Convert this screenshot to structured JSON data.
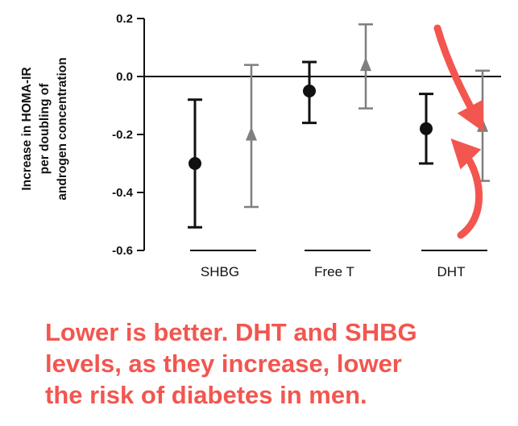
{
  "chart_data": {
    "type": "scatter",
    "subtype": "point-estimate-with-error-bars",
    "ylabel_lines": [
      "Increase in HOMA-IR",
      "per doubling of",
      "androgen concentration"
    ],
    "ylim": [
      -0.6,
      0.2
    ],
    "yticks": [
      "0.2",
      "0.0",
      "-0.2",
      "-0.4",
      "-0.6"
    ],
    "ytick_values": [
      0.2,
      0.0,
      -0.2,
      -0.4,
      -0.6
    ],
    "reference_line": 0.0,
    "categories": [
      "SHBG",
      "Free T",
      "DHT"
    ],
    "series": [
      {
        "marker": "circle",
        "color": "#111111",
        "points": [
          {
            "category": "SHBG",
            "y": -0.3,
            "lower": -0.52,
            "upper": -0.08
          },
          {
            "category": "Free T",
            "y": -0.05,
            "lower": -0.16,
            "upper": 0.05
          },
          {
            "category": "DHT",
            "y": -0.18,
            "lower": -0.3,
            "upper": -0.06
          }
        ]
      },
      {
        "marker": "triangle",
        "color": "#7f7f7f",
        "points": [
          {
            "category": "SHBG",
            "y": -0.2,
            "lower": -0.45,
            "upper": 0.04
          },
          {
            "category": "Free T",
            "y": 0.04,
            "lower": -0.11,
            "upper": 0.18
          },
          {
            "category": "DHT",
            "y": -0.17,
            "lower": -0.36,
            "upper": 0.02
          }
        ]
      }
    ],
    "grid": false,
    "annotation_arrow_color": "#f2564f"
  },
  "annotation_lines": [
    "Lower is better. DHT and SHBG",
    "levels, as they increase, lower",
    "the risk of diabetes in men."
  ]
}
